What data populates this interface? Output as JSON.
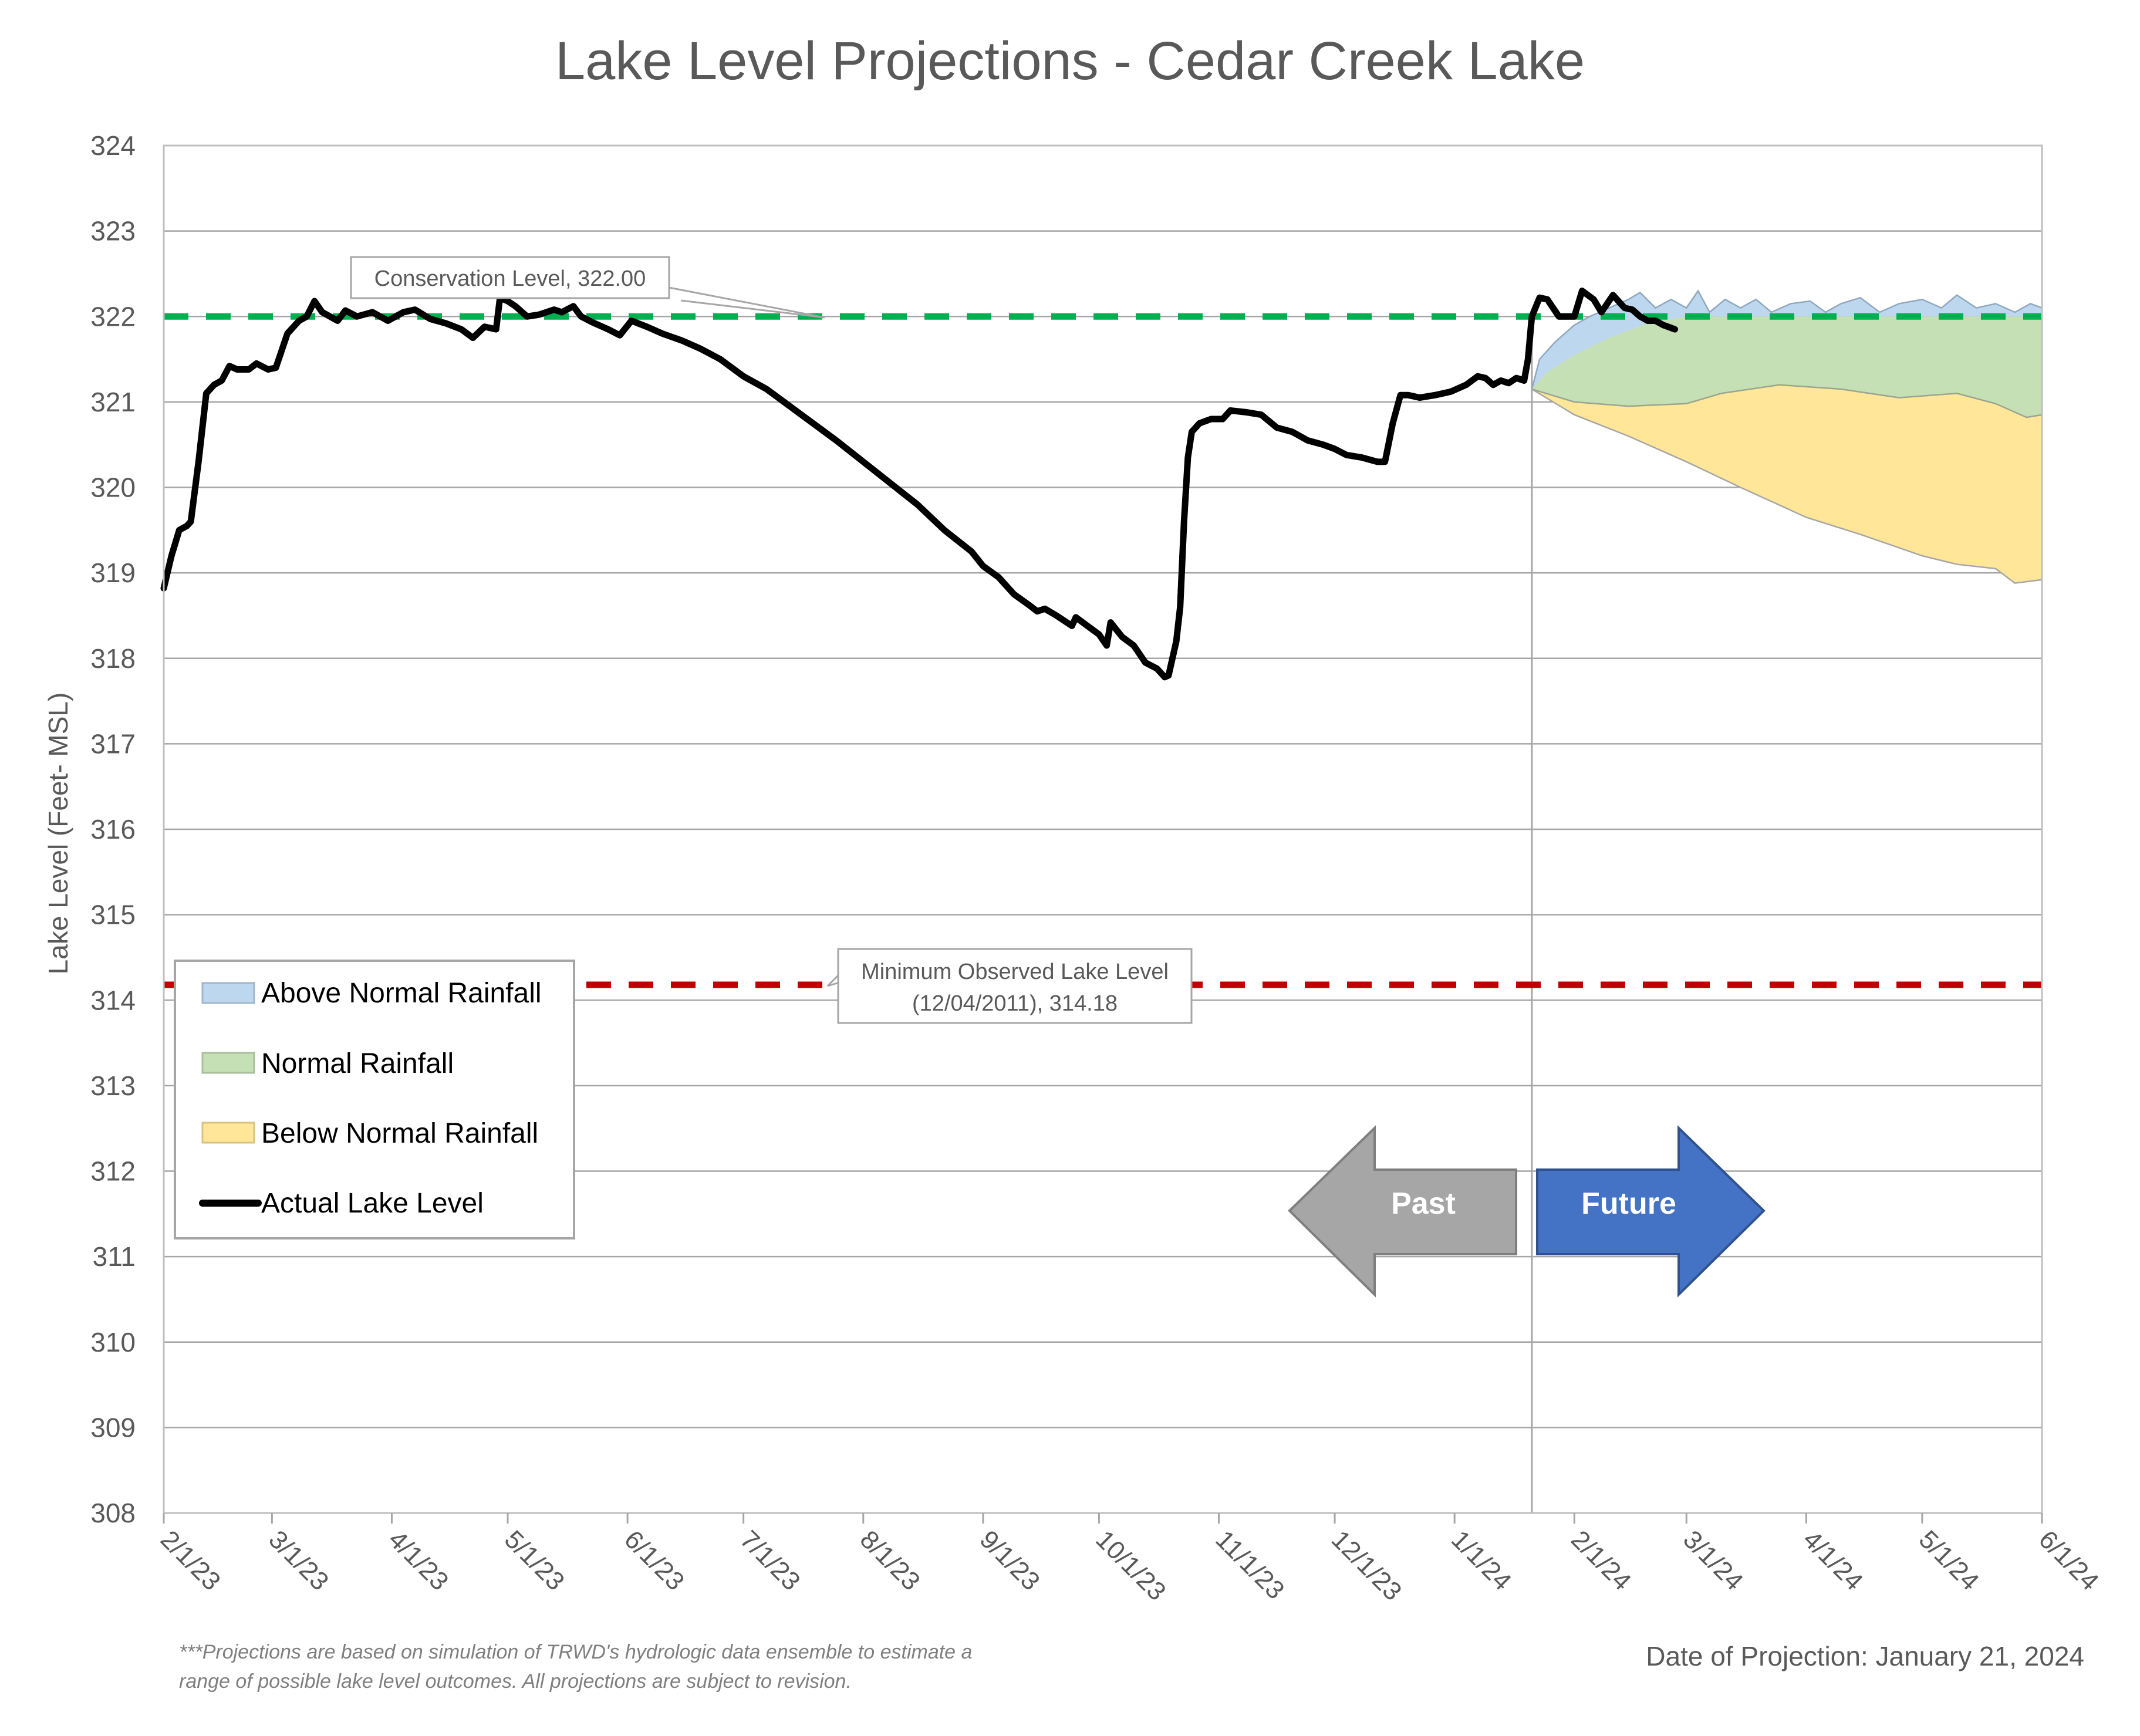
{
  "chart_data": {
    "type": "line",
    "title": "Lake Level Projections - Cedar Creek Lake",
    "ylabel": "Lake Level (Feet- MSL)",
    "ylim": [
      308,
      324
    ],
    "yticks": [
      "308",
      "309",
      "310",
      "311",
      "312",
      "313",
      "314",
      "315",
      "316",
      "317",
      "318",
      "319",
      "320",
      "321",
      "322",
      "323",
      "324"
    ],
    "xlim": [
      "2023-02-01",
      "2024-06-01"
    ],
    "xticks": [
      {
        "date": "2023-02-01",
        "label": "2/1/23"
      },
      {
        "date": "2023-03-01",
        "label": "3/1/23"
      },
      {
        "date": "2023-04-01",
        "label": "4/1/23"
      },
      {
        "date": "2023-05-01",
        "label": "5/1/23"
      },
      {
        "date": "2023-06-01",
        "label": "6/1/23"
      },
      {
        "date": "2023-07-01",
        "label": "7/1/23"
      },
      {
        "date": "2023-08-01",
        "label": "8/1/23"
      },
      {
        "date": "2023-09-01",
        "label": "9/1/23"
      },
      {
        "date": "2023-10-01",
        "label": "10/1/23"
      },
      {
        "date": "2023-11-01",
        "label": "11/1/23"
      },
      {
        "date": "2023-12-01",
        "label": "12/1/23"
      },
      {
        "date": "2024-01-01",
        "label": "1/1/24"
      },
      {
        "date": "2024-02-01",
        "label": "2/1/24"
      },
      {
        "date": "2024-03-01",
        "label": "3/1/24"
      },
      {
        "date": "2024-04-01",
        "label": "4/1/24"
      },
      {
        "date": "2024-05-01",
        "label": "5/1/24"
      },
      {
        "date": "2024-06-01",
        "label": "6/1/24"
      }
    ],
    "grid": true,
    "legend_position": "left",
    "legend": [
      {
        "label": "Above Normal Rainfall",
        "kind": "area",
        "color": "#bdd7ee",
        "stroke": "#9fb6cc"
      },
      {
        "label": "Normal Rainfall",
        "kind": "area",
        "color": "#c5e0b4",
        "stroke": "#a9bf9b"
      },
      {
        "label": "Below Normal Rainfall",
        "kind": "area",
        "color": "#ffe699",
        "stroke": "#d9c27f"
      },
      {
        "label": "Actual Lake Level",
        "kind": "line",
        "color": "#000000"
      }
    ],
    "reference_lines": [
      {
        "label": "Conservation Level, 322.00",
        "value": 322.0,
        "color": "#00b050"
      },
      {
        "label_line1": "Minimum Observed Lake Level",
        "label_line2": "(12/04/2011), 314.18",
        "value": 314.18,
        "color": "#c00000"
      }
    ],
    "projection_date_line": "2024-01-21",
    "arrows": {
      "past": {
        "label": "Past",
        "color": "#a6a6a6"
      },
      "future": {
        "label": "Future",
        "color": "#4472c4"
      }
    },
    "actual_lake_level": [
      [
        "2023-02-01",
        318.82
      ],
      [
        "2023-02-03",
        319.2
      ],
      [
        "2023-02-05",
        319.5
      ],
      [
        "2023-02-07",
        319.55
      ],
      [
        "2023-02-08",
        319.6
      ],
      [
        "2023-02-10",
        320.3
      ],
      [
        "2023-02-12",
        321.1
      ],
      [
        "2023-02-14",
        321.2
      ],
      [
        "2023-02-16",
        321.25
      ],
      [
        "2023-02-18",
        321.42
      ],
      [
        "2023-02-20",
        321.38
      ],
      [
        "2023-02-23",
        321.38
      ],
      [
        "2023-02-25",
        321.45
      ],
      [
        "2023-02-28",
        321.38
      ],
      [
        "2023-03-02",
        321.4
      ],
      [
        "2023-03-05",
        321.8
      ],
      [
        "2023-03-08",
        321.95
      ],
      [
        "2023-03-10",
        322.0
      ],
      [
        "2023-03-12",
        322.18
      ],
      [
        "2023-03-14",
        322.05
      ],
      [
        "2023-03-16",
        322.0
      ],
      [
        "2023-03-18",
        321.95
      ],
      [
        "2023-03-20",
        322.07
      ],
      [
        "2023-03-23",
        322.0
      ],
      [
        "2023-03-27",
        322.05
      ],
      [
        "2023-03-31",
        321.95
      ],
      [
        "2023-04-04",
        322.05
      ],
      [
        "2023-04-07",
        322.08
      ],
      [
        "2023-04-11",
        321.97
      ],
      [
        "2023-04-15",
        321.92
      ],
      [
        "2023-04-19",
        321.85
      ],
      [
        "2023-04-22",
        321.75
      ],
      [
        "2023-04-25",
        321.88
      ],
      [
        "2023-04-28",
        321.85
      ],
      [
        "2023-04-29",
        322.22
      ],
      [
        "2023-05-01",
        322.18
      ],
      [
        "2023-05-03",
        322.12
      ],
      [
        "2023-05-06",
        322.0
      ],
      [
        "2023-05-09",
        322.02
      ],
      [
        "2023-05-13",
        322.08
      ],
      [
        "2023-05-15",
        322.05
      ],
      [
        "2023-05-18",
        322.12
      ],
      [
        "2023-05-20",
        322.0
      ],
      [
        "2023-05-23",
        321.93
      ],
      [
        "2023-05-27",
        321.85
      ],
      [
        "2023-05-30",
        321.78
      ],
      [
        "2023-06-02",
        321.95
      ],
      [
        "2023-06-06",
        321.88
      ],
      [
        "2023-06-10",
        321.8
      ],
      [
        "2023-06-15",
        321.72
      ],
      [
        "2023-06-20",
        321.62
      ],
      [
        "2023-06-25",
        321.5
      ],
      [
        "2023-07-01",
        321.3
      ],
      [
        "2023-07-07",
        321.15
      ],
      [
        "2023-07-13",
        320.95
      ],
      [
        "2023-07-19",
        320.75
      ],
      [
        "2023-07-25",
        320.55
      ],
      [
        "2023-08-01",
        320.3
      ],
      [
        "2023-08-08",
        320.05
      ],
      [
        "2023-08-15",
        319.8
      ],
      [
        "2023-08-22",
        319.5
      ],
      [
        "2023-08-29",
        319.25
      ],
      [
        "2023-09-01",
        319.08
      ],
      [
        "2023-09-05",
        318.95
      ],
      [
        "2023-09-09",
        318.75
      ],
      [
        "2023-09-13",
        318.62
      ],
      [
        "2023-09-15",
        318.55
      ],
      [
        "2023-09-17",
        318.58
      ],
      [
        "2023-09-20",
        318.5
      ],
      [
        "2023-09-24",
        318.38
      ],
      [
        "2023-09-25",
        318.48
      ],
      [
        "2023-09-28",
        318.38
      ],
      [
        "2023-10-01",
        318.28
      ],
      [
        "2023-10-03",
        318.15
      ],
      [
        "2023-10-04",
        318.42
      ],
      [
        "2023-10-07",
        318.25
      ],
      [
        "2023-10-10",
        318.15
      ],
      [
        "2023-10-13",
        317.95
      ],
      [
        "2023-10-16",
        317.88
      ],
      [
        "2023-10-18",
        317.78
      ],
      [
        "2023-10-19",
        317.8
      ],
      [
        "2023-10-21",
        318.2
      ],
      [
        "2023-10-22",
        318.6
      ],
      [
        "2023-10-23",
        319.6
      ],
      [
        "2023-10-24",
        320.35
      ],
      [
        "2023-10-25",
        320.65
      ],
      [
        "2023-10-27",
        320.75
      ],
      [
        "2023-10-30",
        320.8
      ],
      [
        "2023-11-02",
        320.8
      ],
      [
        "2023-11-04",
        320.9
      ],
      [
        "2023-11-08",
        320.88
      ],
      [
        "2023-11-12",
        320.85
      ],
      [
        "2023-11-16",
        320.7
      ],
      [
        "2023-11-20",
        320.65
      ],
      [
        "2023-11-24",
        320.55
      ],
      [
        "2023-11-28",
        320.5
      ],
      [
        "2023-12-01",
        320.45
      ],
      [
        "2023-12-04",
        320.38
      ],
      [
        "2023-12-08",
        320.35
      ],
      [
        "2023-12-12",
        320.3
      ],
      [
        "2023-12-14",
        320.3
      ],
      [
        "2023-12-16",
        320.75
      ],
      [
        "2023-12-18",
        321.08
      ],
      [
        "2023-12-20",
        321.08
      ],
      [
        "2023-12-23",
        321.05
      ],
      [
        "2023-12-27",
        321.08
      ],
      [
        "2023-12-31",
        321.12
      ],
      [
        "2024-01-04",
        321.2
      ],
      [
        "2024-01-07",
        321.3
      ],
      [
        "2024-01-09",
        321.28
      ],
      [
        "2024-01-11",
        321.2
      ],
      [
        "2024-01-13",
        321.25
      ],
      [
        "2024-01-15",
        321.22
      ],
      [
        "2024-01-17",
        321.28
      ],
      [
        "2024-01-19",
        321.25
      ],
      [
        "2024-01-20",
        321.5
      ],
      [
        "2024-01-21",
        322.0
      ],
      [
        "2024-01-23",
        322.22
      ],
      [
        "2024-01-25",
        322.2
      ],
      [
        "2024-01-28",
        322.0
      ],
      [
        "2024-02-01",
        322.0
      ],
      [
        "2024-02-03",
        322.3
      ],
      [
        "2024-02-06",
        322.2
      ],
      [
        "2024-02-08",
        322.05
      ],
      [
        "2024-02-11",
        322.25
      ],
      [
        "2024-02-14",
        322.1
      ],
      [
        "2024-02-16",
        322.08
      ],
      [
        "2024-02-18",
        322.0
      ],
      [
        "2024-02-20",
        321.95
      ],
      [
        "2024-02-22",
        321.95
      ],
      [
        "2024-02-24",
        321.9
      ],
      [
        "2024-02-27",
        321.85
      ]
    ],
    "projection_bands": {
      "above_normal_upper": [
        [
          "2024-01-21",
          321.15
        ],
        [
          "2024-01-23",
          321.5
        ],
        [
          "2024-01-27",
          321.7
        ],
        [
          "2024-02-01",
          321.9
        ],
        [
          "2024-02-05",
          322.0
        ],
        [
          "2024-02-10",
          322.1
        ],
        [
          "2024-02-15",
          322.2
        ],
        [
          "2024-02-18",
          322.28
        ],
        [
          "2024-02-22",
          322.1
        ],
        [
          "2024-02-26",
          322.2
        ],
        [
          "2024-03-01",
          322.1
        ],
        [
          "2024-03-04",
          322.3
        ],
        [
          "2024-03-07",
          322.05
        ],
        [
          "2024-03-11",
          322.2
        ],
        [
          "2024-03-15",
          322.1
        ],
        [
          "2024-03-19",
          322.2
        ],
        [
          "2024-03-23",
          322.05
        ],
        [
          "2024-03-28",
          322.15
        ],
        [
          "2024-04-02",
          322.18
        ],
        [
          "2024-04-06",
          322.05
        ],
        [
          "2024-04-10",
          322.15
        ],
        [
          "2024-04-15",
          322.22
        ],
        [
          "2024-04-20",
          322.05
        ],
        [
          "2024-04-25",
          322.15
        ],
        [
          "2024-05-01",
          322.2
        ],
        [
          "2024-05-06",
          322.1
        ],
        [
          "2024-05-10",
          322.25
        ],
        [
          "2024-05-15",
          322.1
        ],
        [
          "2024-05-20",
          322.15
        ],
        [
          "2024-05-25",
          322.05
        ],
        [
          "2024-05-29",
          322.15
        ],
        [
          "2024-06-01",
          322.1
        ]
      ],
      "normal_upper": [
        [
          "2024-01-21",
          321.15
        ],
        [
          "2024-01-25",
          321.35
        ],
        [
          "2024-02-01",
          321.55
        ],
        [
          "2024-02-10",
          321.75
        ],
        [
          "2024-02-20",
          321.92
        ],
        [
          "2024-03-01",
          322.0
        ],
        [
          "2024-06-01",
          322.0
        ]
      ],
      "normal_lower": [
        [
          "2024-01-21",
          321.15
        ],
        [
          "2024-02-01",
          321.0
        ],
        [
          "2024-02-15",
          320.95
        ],
        [
          "2024-03-01",
          320.98
        ],
        [
          "2024-03-10",
          321.1
        ],
        [
          "2024-03-25",
          321.2
        ],
        [
          "2024-04-10",
          321.15
        ],
        [
          "2024-04-25",
          321.05
        ],
        [
          "2024-05-10",
          321.1
        ],
        [
          "2024-05-20",
          320.98
        ],
        [
          "2024-05-28",
          320.82
        ],
        [
          "2024-06-01",
          320.85
        ]
      ],
      "below_normal_upper": [
        [
          "2024-01-21",
          321.15
        ],
        [
          "2024-02-01",
          321.0
        ],
        [
          "2024-02-15",
          320.95
        ],
        [
          "2024-03-01",
          320.98
        ],
        [
          "2024-03-10",
          321.1
        ],
        [
          "2024-03-25",
          321.2
        ],
        [
          "2024-04-10",
          321.15
        ],
        [
          "2024-04-25",
          321.05
        ],
        [
          "2024-05-10",
          321.1
        ],
        [
          "2024-05-20",
          320.98
        ],
        [
          "2024-05-28",
          320.82
        ],
        [
          "2024-06-01",
          320.85
        ]
      ],
      "below_normal_lower": [
        [
          "2024-01-21",
          321.15
        ],
        [
          "2024-02-01",
          320.85
        ],
        [
          "2024-02-15",
          320.6
        ],
        [
          "2024-03-01",
          320.3
        ],
        [
          "2024-03-15",
          320.0
        ],
        [
          "2024-04-01",
          319.65
        ],
        [
          "2024-04-15",
          319.45
        ],
        [
          "2024-05-01",
          319.2
        ],
        [
          "2024-05-10",
          319.1
        ],
        [
          "2024-05-20",
          319.05
        ],
        [
          "2024-05-25",
          318.88
        ],
        [
          "2024-06-01",
          318.92
        ]
      ]
    }
  },
  "footnote_line1": "***Projections are based on simulation of TRWD's hydrologic data ensemble to estimate a",
  "footnote_line2": "range of possible lake level outcomes.  All projections are subject to revision.",
  "projection_date_text": "Date of Projection: January 21, 2024"
}
